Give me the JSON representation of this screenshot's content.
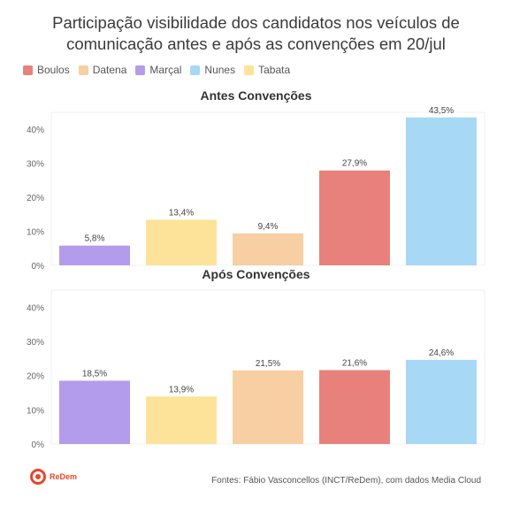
{
  "title_line1": "Participação visibilidade dos candidatos nos veículos de",
  "title_line2": "comunicação antes e após as convenções em 20/jul",
  "legend": [
    {
      "name": "Boulos",
      "color": "#e8817c"
    },
    {
      "name": "Datena",
      "color": "#f7cfa2"
    },
    {
      "name": "Marçal",
      "color": "#b39cec"
    },
    {
      "name": "Nunes",
      "color": "#a7d8f5"
    },
    {
      "name": "Tabata",
      "color": "#fde39a"
    }
  ],
  "footer": "Fontes: Fábio Vasconcellos (INCT/ReDem), com dados Media Cloud",
  "logo_text": "ReDem",
  "chart_data": [
    {
      "type": "bar",
      "title": "Antes Convenções",
      "categories": [
        "Marçal",
        "Tabata",
        "Datena",
        "Boulos",
        "Nunes"
      ],
      "values": [
        5.8,
        13.4,
        9.4,
        27.9,
        43.5
      ],
      "labels": [
        "5,8%",
        "13,4%",
        "9,4%",
        "27,9%",
        "43,5%"
      ],
      "colors": [
        "#b39cec",
        "#fde39a",
        "#f7cfa2",
        "#e8817c",
        "#a7d8f5"
      ],
      "yticks": [
        "0%",
        "10%",
        "20%",
        "30%",
        "40%"
      ],
      "ylim": [
        0,
        45
      ],
      "grid": false
    },
    {
      "type": "bar",
      "title": "Após Convenções",
      "categories": [
        "Marçal",
        "Tabata",
        "Datena",
        "Boulos",
        "Nunes"
      ],
      "values": [
        18.5,
        13.9,
        21.5,
        21.6,
        24.6
      ],
      "labels": [
        "18,5%",
        "13,9%",
        "21,5%",
        "21,6%",
        "24,6%"
      ],
      "colors": [
        "#b39cec",
        "#fde39a",
        "#f7cfa2",
        "#e8817c",
        "#a7d8f5"
      ],
      "yticks": [
        "0%",
        "10%",
        "20%",
        "30%",
        "40%"
      ],
      "ylim": [
        0,
        45
      ],
      "grid": false
    }
  ]
}
